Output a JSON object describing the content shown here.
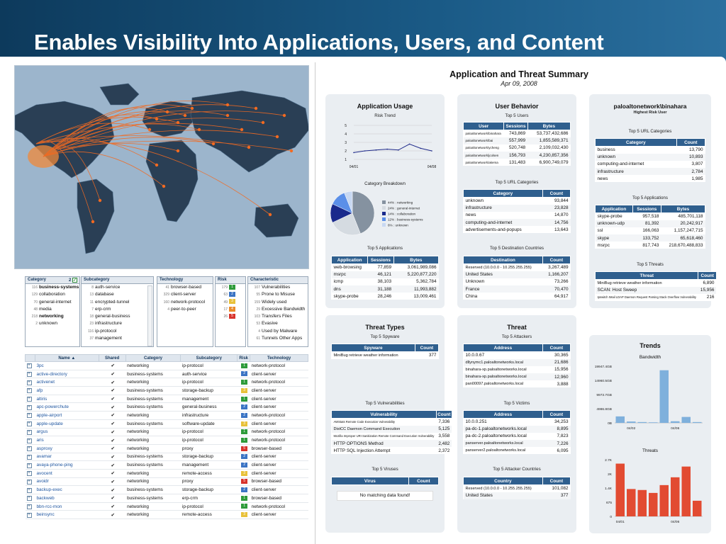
{
  "slide_title": "Enables Visibility Into Applications, Users, and Content",
  "colors": {
    "header_blue": "#2f5f8e",
    "banner": "#14466e",
    "bar_blue": "#7fb0dc",
    "bar_red": "#e24b32",
    "map_ocean": "#9cb5cc",
    "flow_orange": "#f26a21"
  },
  "filters": {
    "category": {
      "header": "Category",
      "count": "2",
      "items": [
        {
          "n": "116",
          "label": "business-systems"
        },
        {
          "n": "129",
          "label": "collaboration"
        },
        {
          "n": "70",
          "label": "general-internet"
        },
        {
          "n": "48",
          "label": "media"
        },
        {
          "n": "218",
          "label": "networking"
        },
        {
          "n": "2",
          "label": "unknown"
        }
      ]
    },
    "subcategory": {
      "header": "Subcategory",
      "items": [
        {
          "n": "8",
          "label": "auth-service"
        },
        {
          "n": "13",
          "label": "database"
        },
        {
          "n": "11",
          "label": "encrypted-tunnel"
        },
        {
          "n": "7",
          "label": "erp-crm"
        },
        {
          "n": "18",
          "label": "general-business"
        },
        {
          "n": "23",
          "label": "infrastructure"
        },
        {
          "n": "116",
          "label": "ip-protocol"
        },
        {
          "n": "37",
          "label": "management"
        }
      ]
    },
    "technology": {
      "header": "Technology",
      "items": [
        {
          "n": "41",
          "label": "browser-based"
        },
        {
          "n": "329",
          "label": "client-server"
        },
        {
          "n": "160",
          "label": "network-protocol"
        },
        {
          "n": "4",
          "label": "peer-to-peer"
        }
      ]
    },
    "risk": {
      "header": "Risk",
      "items": [
        {
          "n": "179",
          "r": "1",
          "c": "#2e9b3a"
        },
        {
          "n": "63",
          "r": "2",
          "c": "#3b74c4"
        },
        {
          "n": "49",
          "r": "3",
          "c": "#e8c13a"
        },
        {
          "n": "17",
          "r": "4",
          "c": "#ea8a2a"
        },
        {
          "n": "26",
          "r": "5",
          "c": "#d8332c"
        }
      ]
    },
    "characteristic": {
      "header": "Characteristic",
      "items": [
        {
          "n": "107",
          "label": "Vulnerabilities"
        },
        {
          "n": "55",
          "label": "Prone to Misuse"
        },
        {
          "n": "159",
          "label": "Widely used"
        },
        {
          "n": "29",
          "label": "Excessive Bandwidth"
        },
        {
          "n": "103",
          "label": "Transfers Files"
        },
        {
          "n": "53",
          "label": "Evasive"
        },
        {
          "n": "4",
          "label": "Used by Malware"
        },
        {
          "n": "61",
          "label": "Tunnels Other Apps"
        }
      ]
    }
  },
  "app_table": {
    "headers": [
      "Name ▲",
      "Shared",
      "Category",
      "Subcategory",
      "Risk",
      "Technology"
    ],
    "rows": [
      [
        "3pc",
        "✔",
        "networking",
        "ip-protocol",
        "1",
        "network-protocol"
      ],
      [
        "active-directory",
        "✔",
        "business-systems",
        "auth-service",
        "2",
        "client-server"
      ],
      [
        "activenet",
        "✔",
        "networking",
        "ip-protocol",
        "1",
        "network-protocol"
      ],
      [
        "afp",
        "✔",
        "business-systems",
        "storage-backup",
        "3",
        "client-server"
      ],
      [
        "altiris",
        "✔",
        "business-systems",
        "management",
        "1",
        "client-server"
      ],
      [
        "apc-powerchute",
        "✔",
        "business-systems",
        "general-business",
        "2",
        "client-server"
      ],
      [
        "apple-airport",
        "✔",
        "networking",
        "infrastructure",
        "2",
        "network-protocol"
      ],
      [
        "apple-update",
        "✔",
        "business-systems",
        "software-update",
        "3",
        "client-server"
      ],
      [
        "argus",
        "✔",
        "networking",
        "ip-protocol",
        "1",
        "network-protocol"
      ],
      [
        "aris",
        "✔",
        "networking",
        "ip-protocol",
        "1",
        "network-protocol"
      ],
      [
        "asproxy",
        "✔",
        "networking",
        "proxy",
        "5",
        "browser-based"
      ],
      [
        "avamar",
        "✔",
        "business-systems",
        "storage-backup",
        "2",
        "client-server"
      ],
      [
        "avaya-phone-ping",
        "✔",
        "business-systems",
        "management",
        "2",
        "client-server"
      ],
      [
        "avocent",
        "✔",
        "networking",
        "remote-access",
        "3",
        "client-server"
      ],
      [
        "avoidr",
        "✔",
        "networking",
        "proxy",
        "5",
        "browser-based"
      ],
      [
        "backup-exec",
        "✔",
        "business-systems",
        "storage-backup",
        "2",
        "client-server"
      ],
      [
        "backweb",
        "✔",
        "business-systems",
        "erp-crm",
        "1",
        "browser-based"
      ],
      [
        "bbn-rcc-mon",
        "✔",
        "networking",
        "ip-protocol",
        "1",
        "network-protocol"
      ],
      [
        "beinsync",
        "✔",
        "networking",
        "remote-access",
        "3",
        "client-server"
      ]
    ]
  },
  "report": {
    "title": "Application and Threat Summary",
    "date": "Apr 09, 2008",
    "app_usage": {
      "title": "Application Usage",
      "risk_trend": "Risk Trend",
      "y_ticks": [
        "5",
        "4",
        "3",
        "2",
        "1"
      ],
      "x_start": "04/01",
      "x_end": "04/08",
      "category_breakdown": "Category Breakdown",
      "pie": [
        {
          "label": "44% : networking",
          "v": 44,
          "c": "#8592a0"
        },
        {
          "label": "24% : general-internet",
          "v": 24,
          "c": "#d5dbe1"
        },
        {
          "label": "14% : collaboration",
          "v": 14,
          "c": "#1a2a8c"
        },
        {
          "label": "12% : business-systems",
          "v": 12,
          "c": "#5b8fe8"
        },
        {
          "label": "6% : unknown",
          "v": 6,
          "c": "#c8d8f2"
        }
      ],
      "top5_apps": {
        "title": "Top 5 Applications",
        "headers": [
          "Application",
          "Sessions",
          "Bytes"
        ],
        "rows": [
          [
            "web-browsing",
            "77,859",
            "3,061,989,086"
          ],
          [
            "msrpc",
            "46,121",
            "5,220,877,220"
          ],
          [
            "icmp",
            "38,103",
            "5,362,784"
          ],
          [
            "dns",
            "31,188",
            "11,993,882"
          ],
          [
            "skype-probe",
            "28,246",
            "13,009,461"
          ]
        ]
      }
    },
    "user_behavior": {
      "title": "User Behavior",
      "top5_users": {
        "title": "Top 5 Users",
        "headers": [
          "User",
          "Sessions",
          "Bytes"
        ],
        "rows": [
          [
            "paloaltonetwork\\binahara",
            "743,869",
            "53,737,432,686"
          ],
          [
            "paloaltonetwork\\bai",
            "557,999",
            "1,855,589,371"
          ],
          [
            "paloaltonetwork\\ycheng",
            "520,748",
            "2,109,032,430"
          ],
          [
            "paloaltonetwork\\jcolsen",
            "156,793",
            "4,230,857,356"
          ],
          [
            "paloaltonetwork\\akema",
            "131,483",
            "6,900,749,079"
          ]
        ]
      },
      "top5_url": {
        "title": "Top 5 URL Categories",
        "headers": [
          "Category",
          "Count"
        ],
        "rows": [
          [
            "unknown",
            "93,844"
          ],
          [
            "infrastructure",
            "23,828"
          ],
          [
            "news",
            "14,870"
          ],
          [
            "computing-and-internet",
            "14,756"
          ],
          [
            "advertisements-and-popups",
            "13,643"
          ]
        ]
      },
      "top5_dest": {
        "title": "Top 5 Destination Countries",
        "headers": [
          "Destination",
          "Count"
        ],
        "rows": [
          [
            "Reserved (10.0.0.0 - 10.255.255.255)",
            "3,267,489"
          ],
          [
            "United States",
            "1,166,207"
          ],
          [
            "Unknown",
            "73,266"
          ],
          [
            "France",
            "70,470"
          ],
          [
            "China",
            "64,917"
          ]
        ]
      }
    },
    "user_detail": {
      "title": "paloaltonetwork\\binahara",
      "subtitle": "Highest Risk User",
      "top5_url": {
        "title": "Top 5 URL Categories",
        "headers": [
          "Category",
          "Count"
        ],
        "rows": [
          [
            "business",
            "13,790"
          ],
          [
            "unknown",
            "10,893"
          ],
          [
            "computing-and-internet",
            "3,807"
          ],
          [
            "infrastructure",
            "2,784"
          ],
          [
            "news",
            "1,985"
          ]
        ]
      },
      "top5_apps": {
        "title": "Top 5 Applications",
        "headers": [
          "Application",
          "Sessions",
          "Bytes"
        ],
        "rows": [
          [
            "skype-probe",
            "957,518",
            "485,701,118"
          ],
          [
            "unknown-udp",
            "81,392",
            "20,242,917"
          ],
          [
            "ssl",
            "166,063",
            "1,157,247,715"
          ],
          [
            "skype",
            "133,752",
            "65,618,460"
          ],
          [
            "msrpc",
            "817,743",
            "218,670,488,833"
          ]
        ]
      },
      "top5_threats": {
        "title": "Top 5 Threats",
        "headers": [
          "Threat",
          "Count"
        ],
        "rows": [
          [
            "MiniBug retrieve weather information",
            "6,890"
          ],
          [
            "SCAN: Host Sweep",
            "15,956"
          ],
          [
            "Ipswitch IMail LDAP Daemon Request Parsing Stack Overflow Vulnerability",
            "216"
          ]
        ]
      }
    },
    "threat_types": {
      "title": "Threat Types",
      "spyware": {
        "title": "Top 5 Spyware",
        "headers": [
          "Spyware",
          "Count"
        ],
        "rows": [
          [
            "MiniBug retrieve weather information",
            "377"
          ]
        ]
      },
      "vulns": {
        "title": "Top 5 Vulnerabilities",
        "headers": [
          "Vulnerability",
          "Count"
        ],
        "rows": [
          [
            "AWStats Remote Code Execution Vulnerability",
            "7,336"
          ],
          [
            "DistCC Daemon Command Execution",
            "5,125"
          ],
          [
            "Mozilla Improper URI Sanitization Remote Command Execution Vulnerability",
            "3,558"
          ],
          [
            "HTTP OPTIONS Method",
            "2,482"
          ],
          [
            "HTTP SQL Injection Attempt",
            "2,372"
          ]
        ]
      },
      "viruses": {
        "title": "Top 5 Viruses",
        "headers": [
          "Virus",
          "Count"
        ],
        "no_data": "No matching data found!"
      }
    },
    "threat": {
      "title": "Threat",
      "attackers": {
        "title": "Top 5 Attackers",
        "headers": [
          "Address",
          "Count"
        ],
        "rows": [
          [
            "10.0.0.67",
            "30,365"
          ],
          [
            "dllynymc1.paloaltonetworks.local",
            "21,686"
          ],
          [
            "binahara-xp.paloaltonetworks.local",
            "15,956"
          ],
          [
            "binahara-xp.paloaltonetworks.local",
            "12,960"
          ],
          [
            "pan00097.paloaltonetworks.local",
            "3,888"
          ]
        ]
      },
      "victims": {
        "title": "Top 5 Victims",
        "headers": [
          "Address",
          "Count"
        ],
        "rows": [
          [
            "10.0.0.251",
            "34,253"
          ],
          [
            "pa-dc-1.paloaltonetworks.local",
            "8,895"
          ],
          [
            "pa-dc-2.paloaltonetworks.local",
            "7,823"
          ],
          [
            "panserver.paloaltonetworks.local",
            "7,226"
          ],
          [
            "panserver2.paloaltonetworks.local",
            "6,095"
          ]
        ]
      },
      "attacker_countries": {
        "title": "Top 5 Attacker Countries",
        "headers": [
          "Country",
          "Count"
        ],
        "rows": [
          [
            "Reserved (10.0.0.0 - 10.255.255.255)",
            "101,082"
          ],
          [
            "United States",
            "377"
          ]
        ]
      }
    },
    "trends": {
      "title": "Trends"
    }
  },
  "chart_data": [
    {
      "type": "line",
      "title": "Risk Trend",
      "x": [
        "04/01",
        "04/02",
        "04/03",
        "04/04",
        "04/05",
        "04/06",
        "04/07",
        "04/08"
      ],
      "values": [
        1.8,
        2.0,
        2.1,
        2.2,
        2.1,
        2.8,
        2.3,
        2.0
      ],
      "ylim": [
        1,
        5
      ],
      "xtick_labels": [
        "04/01",
        "04/08"
      ],
      "ytick_labels": [
        "5",
        "4",
        "3",
        "2",
        "1"
      ]
    },
    {
      "type": "pie",
      "title": "Category Breakdown",
      "categories": [
        "networking",
        "general-internet",
        "collaboration",
        "business-systems",
        "unknown"
      ],
      "values": [
        44,
        24,
        14,
        12,
        6
      ]
    },
    {
      "type": "bar",
      "title": "Bandwidth",
      "categories": [
        "04/01",
        "04/02",
        "04/03",
        "04/04",
        "04/05",
        "04/06",
        "04/07",
        "04/08"
      ],
      "values": [
        2.4,
        0.5,
        0.3,
        0.2,
        19.5,
        0.6,
        2.2,
        0.3
      ],
      "unit": "GB",
      "ylim": [
        0,
        21
      ],
      "ytick_labels": [
        "19947.4GB",
        "14960.5GB",
        "9973.7GB",
        "4986.8GB",
        "0B"
      ],
      "xtick_labels": [
        "04/02",
        "04/06"
      ]
    },
    {
      "type": "bar",
      "title": "Threats",
      "categories": [
        "04/01",
        "04/02",
        "04/03",
        "04/04",
        "04/05",
        "04/06",
        "04/07",
        "04/08"
      ],
      "values": [
        2.7,
        1.4,
        1.35,
        1.2,
        1.6,
        2.0,
        2.55,
        0.8
      ],
      "unit": "K",
      "ylim": [
        0,
        2.9
      ],
      "ytick_labels": [
        "2.7K",
        "2K",
        "1.4K",
        "675",
        "0"
      ],
      "xtick_labels": [
        "04/01",
        "04/06"
      ]
    }
  ]
}
